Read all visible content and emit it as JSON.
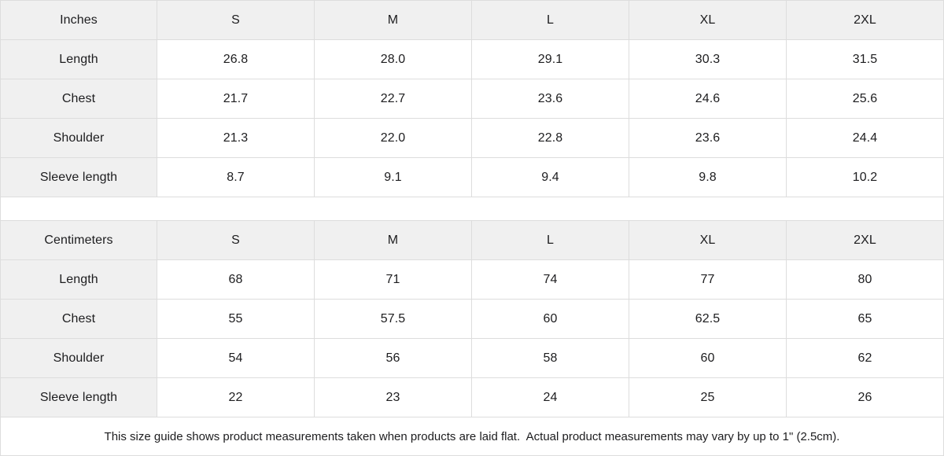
{
  "colors": {
    "header_bg": "#f0f0f0",
    "border": "#dddddd",
    "text": "#1d1d1f"
  },
  "tables": [
    {
      "unit_label": "Inches",
      "sizes": [
        "S",
        "M",
        "L",
        "XL",
        "2XL"
      ],
      "rows": [
        {
          "label": "Length",
          "values": [
            "26.8",
            "28.0",
            "29.1",
            "30.3",
            "31.5"
          ]
        },
        {
          "label": "Chest",
          "values": [
            "21.7",
            "22.7",
            "23.6",
            "24.6",
            "25.6"
          ]
        },
        {
          "label": "Shoulder",
          "values": [
            "21.3",
            "22.0",
            "22.8",
            "23.6",
            "24.4"
          ]
        },
        {
          "label": "Sleeve length",
          "values": [
            "8.7",
            "9.1",
            "9.4",
            "9.8",
            "10.2"
          ]
        }
      ]
    },
    {
      "unit_label": "Centimeters",
      "sizes": [
        "S",
        "M",
        "L",
        "XL",
        "2XL"
      ],
      "rows": [
        {
          "label": "Length",
          "values": [
            "68",
            "71",
            "74",
            "77",
            "80"
          ]
        },
        {
          "label": "Chest",
          "values": [
            "55",
            "57.5",
            "60",
            "62.5",
            "65"
          ]
        },
        {
          "label": "Shoulder",
          "values": [
            "54",
            "56",
            "58",
            "60",
            "62"
          ]
        },
        {
          "label": "Sleeve length",
          "values": [
            "22",
            "23",
            "24",
            "25",
            "26"
          ]
        }
      ]
    }
  ],
  "footer_note": "This size guide shows product measurements taken when products are laid flat.  Actual product measurements may vary by up to 1\" (2.5cm)."
}
